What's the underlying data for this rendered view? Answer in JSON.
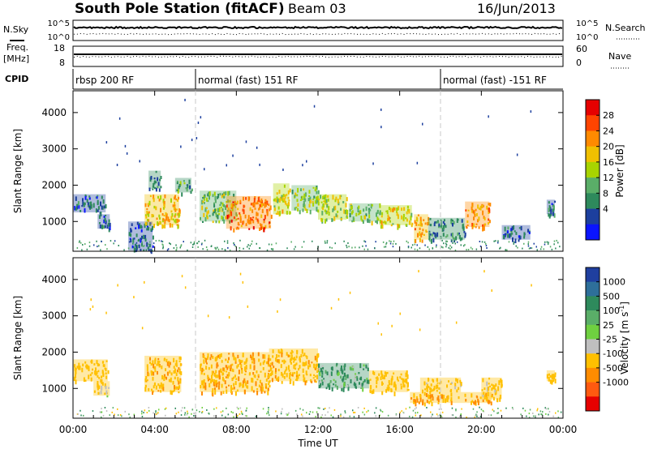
{
  "header": {
    "title": "South Pole Station (fitACF)",
    "beam": "Beam 03",
    "date": "16/Jun/2013"
  },
  "strips": {
    "nsky": {
      "label": "N.Sky",
      "ticks": [
        "10^5",
        "10^0"
      ]
    },
    "freq": {
      "label_line1": "Freq.",
      "label_line2": "[MHz]",
      "ticks": [
        "18",
        "8"
      ]
    },
    "nsearch": {
      "label": "N.Search",
      "ticks": [
        "10^5",
        "10^0"
      ]
    },
    "nave": {
      "label": "Nave",
      "ticks": [
        "60",
        "0"
      ]
    },
    "cpid": {
      "label": "CPID"
    }
  },
  "modes": [
    {
      "label": "rbsp 200 RF",
      "start_hour": 0
    },
    {
      "label": "normal (fast) 151 RF",
      "start_hour": 6
    },
    {
      "label": "normal (fast) -151 RF",
      "start_hour": 18
    }
  ],
  "axes": {
    "ylabel": "Slant Range [km]",
    "yticks": [
      "1000",
      "2000",
      "3000",
      "4000"
    ],
    "xlabel": "Time UT",
    "xticks": [
      "00:00",
      "04:00",
      "08:00",
      "12:00",
      "16:00",
      "20:00",
      "00:00"
    ]
  },
  "colorbars": {
    "power": {
      "label": "Power [dB]",
      "ticks": [
        "28",
        "24",
        "20",
        "16",
        "12",
        "8",
        "4"
      ],
      "colors": [
        "#e60000",
        "#ff4400",
        "#ff8a00",
        "#f0c000",
        "#a8d400",
        "#5aae68",
        "#2e8a5c",
        "#1c3f9e",
        "#0a14ff"
      ]
    },
    "velocity": {
      "label": "Velocity [m s^-1]",
      "ticks": [
        "1000",
        "500",
        "100",
        "25",
        "-25",
        "-100",
        "-500",
        "-1000"
      ],
      "colors": [
        "#1f3f9f",
        "#2e6f9a",
        "#2e8a5c",
        "#5aae68",
        "#6fd040",
        "#bfbfbf",
        "#ffc000",
        "#ff8c00",
        "#ff5a10",
        "#e60000"
      ]
    }
  },
  "chart_data": [
    {
      "type": "heatmap",
      "name": "power",
      "xlabel": "Time UT",
      "ylabel": "Slant Range [km]",
      "xlim_hours": [
        0,
        24
      ],
      "ylim_km": [
        180,
        4600
      ],
      "zlabel": "Power [dB]",
      "zticks": [
        4,
        8,
        12,
        16,
        20,
        24,
        28
      ],
      "regions": [
        {
          "t": [
            0.0,
            1.6
          ],
          "r": [
            1250,
            1750
          ],
          "v": 6
        },
        {
          "t": [
            1.2,
            1.8
          ],
          "r": [
            800,
            1200
          ],
          "v": 6
        },
        {
          "t": [
            2.7,
            3.9
          ],
          "r": [
            200,
            1000
          ],
          "v": 5
        },
        {
          "t": [
            3.5,
            5.2
          ],
          "r": [
            900,
            1750
          ],
          "v": 20
        },
        {
          "t": [
            3.7,
            4.3
          ],
          "r": [
            1900,
            2400
          ],
          "v": 8
        },
        {
          "t": [
            5.0,
            5.8
          ],
          "r": [
            1800,
            2200
          ],
          "v": 10
        },
        {
          "t": [
            6.2,
            8.0
          ],
          "r": [
            1000,
            1850
          ],
          "v": 14
        },
        {
          "t": [
            7.5,
            9.7
          ],
          "r": [
            800,
            1700
          ],
          "v": 26
        },
        {
          "t": [
            9.8,
            10.6
          ],
          "r": [
            1200,
            2050
          ],
          "v": 18
        },
        {
          "t": [
            10.7,
            12.0
          ],
          "r": [
            1300,
            2000
          ],
          "v": 14
        },
        {
          "t": [
            12.0,
            13.4
          ],
          "r": [
            1050,
            1750
          ],
          "v": 16
        },
        {
          "t": [
            13.5,
            15.0
          ],
          "r": [
            1000,
            1500
          ],
          "v": 14
        },
        {
          "t": [
            15.0,
            16.6
          ],
          "r": [
            900,
            1450
          ],
          "v": 18
        },
        {
          "t": [
            16.7,
            17.4
          ],
          "r": [
            500,
            1200
          ],
          "v": 22
        },
        {
          "t": [
            17.4,
            19.2
          ],
          "r": [
            500,
            1100
          ],
          "v": 8
        },
        {
          "t": [
            19.2,
            20.4
          ],
          "r": [
            850,
            1550
          ],
          "v": 24
        },
        {
          "t": [
            21.0,
            22.4
          ],
          "r": [
            500,
            900
          ],
          "v": 6
        },
        {
          "t": [
            23.2,
            23.6
          ],
          "r": [
            1200,
            1600
          ],
          "v": 6
        }
      ]
    },
    {
      "type": "heatmap",
      "name": "velocity",
      "xlabel": "Time UT",
      "ylabel": "Slant Range [km]",
      "xlim_hours": [
        0,
        24
      ],
      "ylim_km": [
        180,
        4600
      ],
      "zlabel": "Velocity [m s^-1]",
      "zticks": [
        -1000,
        -500,
        -100,
        -25,
        25,
        100,
        500,
        1000
      ],
      "regions": [
        {
          "t": [
            0.0,
            1.7
          ],
          "r": [
            1200,
            1800
          ],
          "v": -300
        },
        {
          "t": [
            1.0,
            1.8
          ],
          "r": [
            800,
            1200
          ],
          "v": -200
        },
        {
          "t": [
            3.5,
            5.3
          ],
          "r": [
            900,
            1900
          ],
          "v": -400
        },
        {
          "t": [
            6.2,
            9.6
          ],
          "r": [
            900,
            2000
          ],
          "v": -450
        },
        {
          "t": [
            9.6,
            12.0
          ],
          "r": [
            1200,
            2100
          ],
          "v": -350
        },
        {
          "t": [
            12.0,
            14.5
          ],
          "r": [
            1000,
            1700
          ],
          "v": 120
        },
        {
          "t": [
            14.5,
            16.4
          ],
          "r": [
            900,
            1500
          ],
          "v": -300
        },
        {
          "t": [
            16.5,
            20.5
          ],
          "r": [
            600,
            900
          ],
          "v": -500
        },
        {
          "t": [
            17.0,
            19.0
          ],
          "r": [
            900,
            1300
          ],
          "v": -250
        },
        {
          "t": [
            20.0,
            21.0
          ],
          "r": [
            700,
            1300
          ],
          "v": -200
        },
        {
          "t": [
            23.2,
            23.6
          ],
          "r": [
            1200,
            1500
          ],
          "v": -300
        }
      ]
    }
  ]
}
